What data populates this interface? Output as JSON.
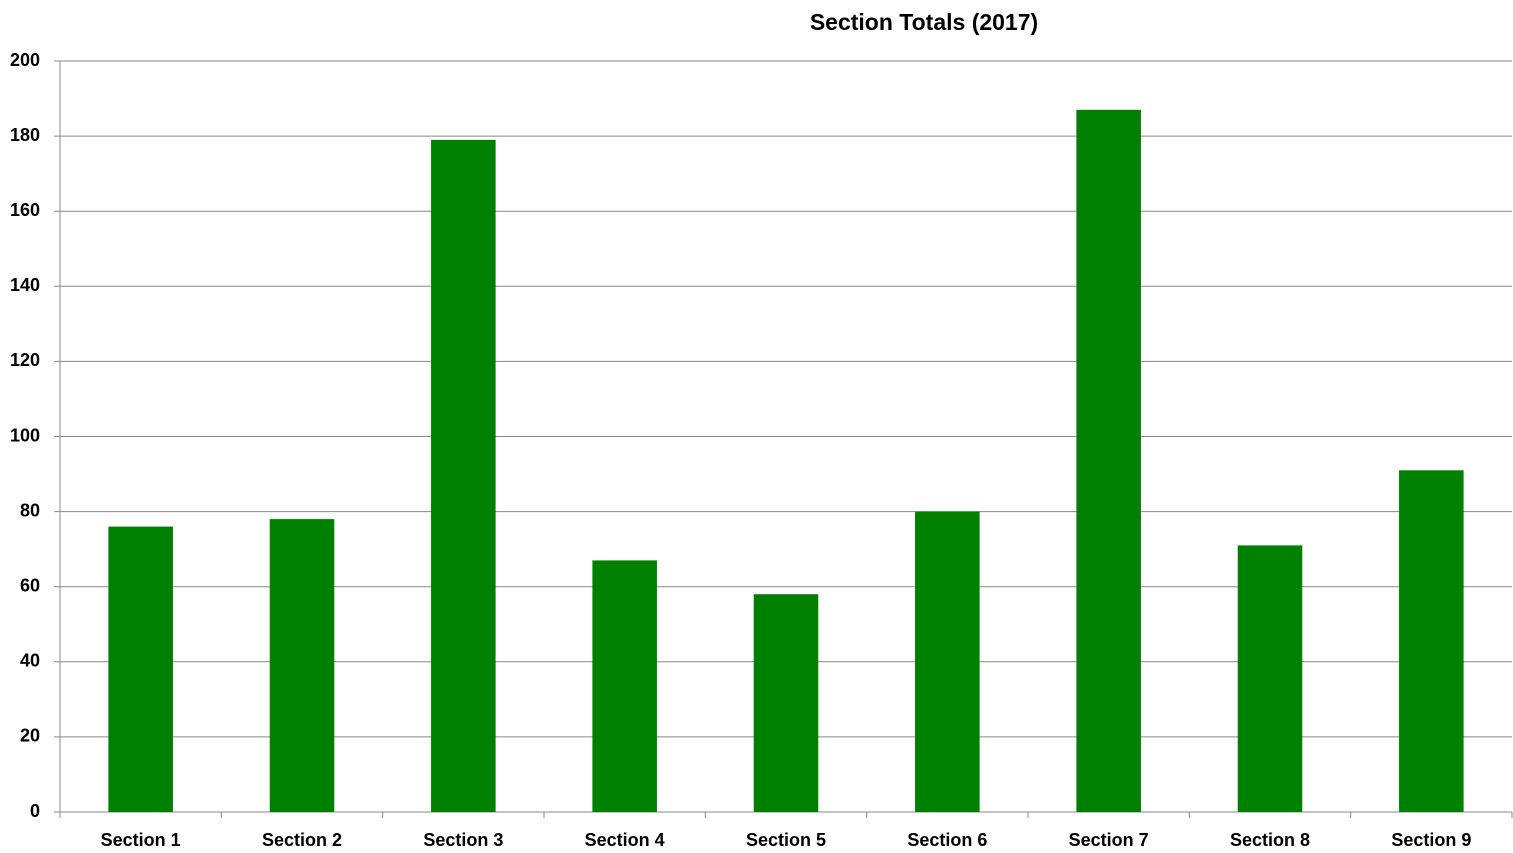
{
  "chart_data": {
    "type": "bar",
    "title": "Section Totals (2017)",
    "categories": [
      "Section 1",
      "Section 2",
      "Section 3",
      "Section 4",
      "Section 5",
      "Section 6",
      "Section 7",
      "Section 8",
      "Section 9"
    ],
    "values": [
      76,
      78,
      179,
      67,
      58,
      80,
      187,
      71,
      91
    ],
    "color": "#008000",
    "ylim": [
      0,
      200
    ],
    "yticks": [
      0,
      20,
      40,
      60,
      80,
      100,
      120,
      140,
      160,
      180,
      200
    ],
    "grid": true
  }
}
